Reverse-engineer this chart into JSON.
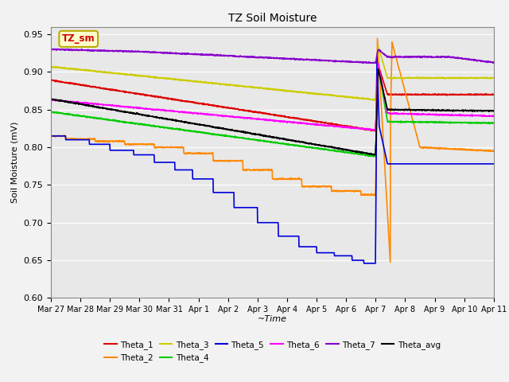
{
  "title": "TZ Soil Moisture",
  "xlabel": "~Time",
  "ylabel": "Soil Moisture (mV)",
  "ylim": [
    0.6,
    0.96
  ],
  "yticks": [
    0.6,
    0.65,
    0.7,
    0.75,
    0.8,
    0.85,
    0.9,
    0.95
  ],
  "bg_color": "#f2f2f2",
  "plot_bg_color": "#e8e8e8",
  "label_text": "TZ_sm",
  "label_text_color": "#cc0000",
  "label_box_facecolor": "#ffffcc",
  "label_box_edgecolor": "#bbaa00",
  "series": {
    "Theta_1": {
      "color": "#dd0000",
      "lw": 1.2
    },
    "Theta_2": {
      "color": "#ff8800",
      "lw": 1.2
    },
    "Theta_3": {
      "color": "#cccc00",
      "lw": 1.2
    },
    "Theta_4": {
      "color": "#00cc00",
      "lw": 1.2
    },
    "Theta_5": {
      "color": "#0000dd",
      "lw": 1.2
    },
    "Theta_6": {
      "color": "#ff00ff",
      "lw": 1.2
    },
    "Theta_7": {
      "color": "#8800cc",
      "lw": 1.2
    },
    "Theta_avg": {
      "color": "#000000",
      "lw": 1.2
    }
  },
  "tick_positions": [
    0,
    1,
    2,
    3,
    4,
    5,
    6,
    7,
    8,
    9,
    10,
    11,
    12,
    13,
    14,
    15
  ],
  "tick_labels": [
    "Mar 27",
    "Mar 28",
    "Mar 29",
    "Mar 30",
    "Mar 31",
    "Apr 1",
    "Apr 2",
    "Apr 3",
    "Apr 4",
    "Apr 5",
    "Apr 6",
    "Apr 7",
    "Apr 8",
    "Apr 9",
    "Apr 10",
    "Apr 11"
  ]
}
